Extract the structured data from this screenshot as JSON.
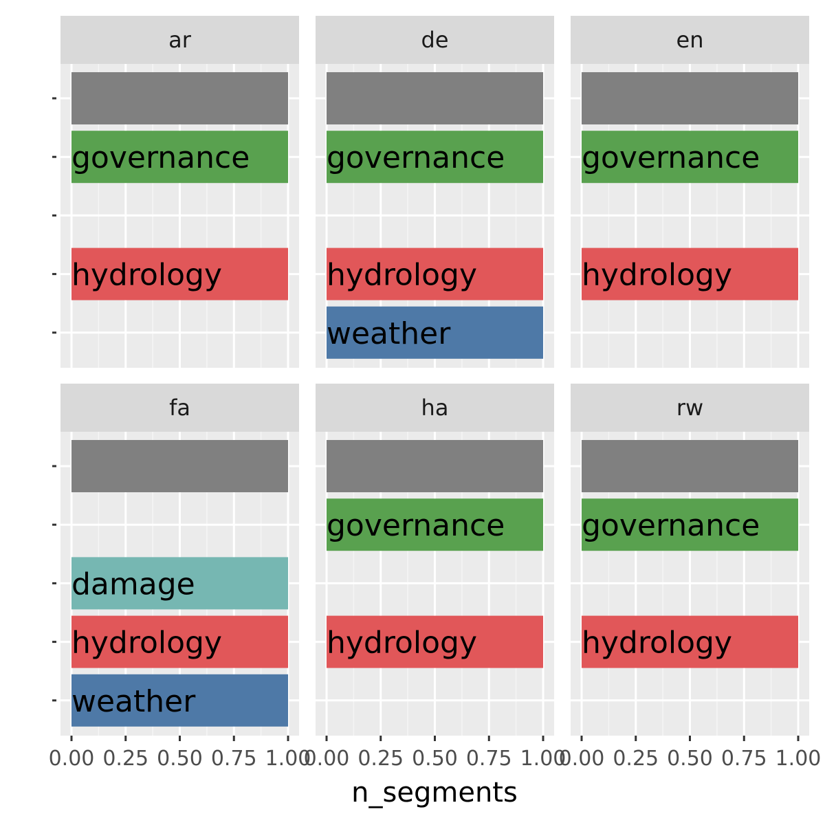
{
  "chart_data": {
    "type": "bar",
    "orientation": "horizontal",
    "facet_by": "language",
    "xlabel": "n_segments",
    "ylabel": "",
    "xlim": [
      0,
      1
    ],
    "x_ticks": [
      "0.00",
      "0.25",
      "0.50",
      "0.75",
      "1.00"
    ],
    "categories": [
      "",
      "governance",
      "damage",
      "hydrology",
      "weather"
    ],
    "grid": true,
    "colors": {
      "": "#808080",
      "governance": "#59a14f",
      "damage": "#76b7b2",
      "hydrology": "#e15759",
      "weather": "#4e79a7"
    },
    "panels": [
      {
        "label": "ar",
        "bars": [
          {
            "category": "",
            "value": 1
          },
          {
            "category": "governance",
            "value": 1
          },
          {
            "category": "hydrology",
            "value": 1
          }
        ]
      },
      {
        "label": "de",
        "bars": [
          {
            "category": "",
            "value": 1
          },
          {
            "category": "governance",
            "value": 1
          },
          {
            "category": "hydrology",
            "value": 1
          },
          {
            "category": "weather",
            "value": 1
          }
        ]
      },
      {
        "label": "en",
        "bars": [
          {
            "category": "",
            "value": 1
          },
          {
            "category": "governance",
            "value": 1
          },
          {
            "category": "hydrology",
            "value": 1
          }
        ]
      },
      {
        "label": "fa",
        "bars": [
          {
            "category": "",
            "value": 1
          },
          {
            "category": "damage",
            "value": 1
          },
          {
            "category": "hydrology",
            "value": 1
          },
          {
            "category": "weather",
            "value": 1
          }
        ]
      },
      {
        "label": "ha",
        "bars": [
          {
            "category": "",
            "value": 1
          },
          {
            "category": "governance",
            "value": 1
          },
          {
            "category": "hydrology",
            "value": 1
          }
        ]
      },
      {
        "label": "rw",
        "bars": [
          {
            "category": "",
            "value": 1
          },
          {
            "category": "governance",
            "value": 1
          },
          {
            "category": "hydrology",
            "value": 1
          }
        ]
      }
    ]
  }
}
